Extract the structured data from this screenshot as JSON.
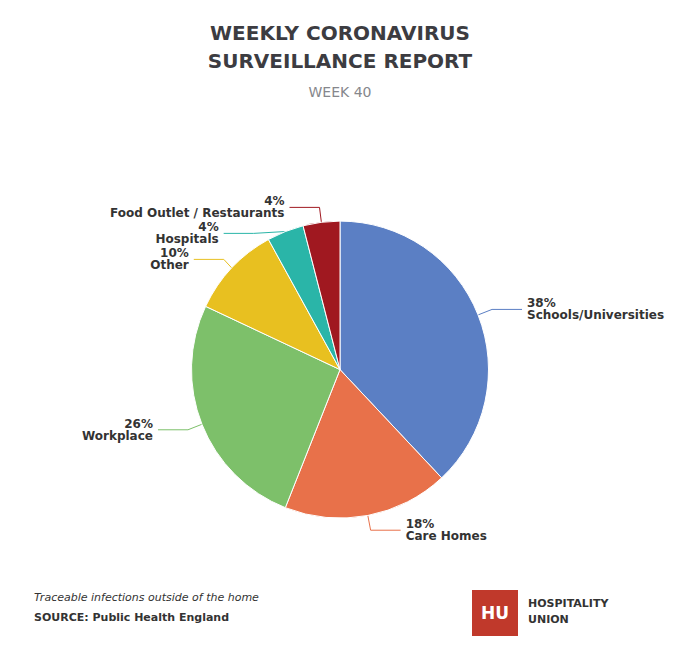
{
  "chart_data": {
    "type": "pie",
    "title": "WEEKLY CORONAVIRUS\nSURVEILLANCE REPORT",
    "subtitle": "WEEK 40",
    "categories": [
      "Schools/Universities",
      "Care Homes",
      "Workplace",
      "Other",
      "Hospitals",
      "Food Outlet / Restaurants"
    ],
    "values": [
      38,
      18,
      26,
      10,
      4,
      4
    ],
    "value_labels": [
      "38%",
      "18%",
      "26%",
      "10%",
      "4%",
      "4%"
    ],
    "colors": [
      "#5b7fc4",
      "#e8714a",
      "#7dc06a",
      "#e8c020",
      "#2ab5a8",
      "#a01820"
    ],
    "data_labels": true,
    "legend": false,
    "annotations": [
      {
        "text": "Traceable infections outside of the home"
      },
      {
        "text": "SOURCE: Public Health England"
      },
      {
        "text": "HU",
        "color": "#c0392b"
      },
      {
        "text": "HOSPITALITY\nUNION"
      }
    ]
  }
}
